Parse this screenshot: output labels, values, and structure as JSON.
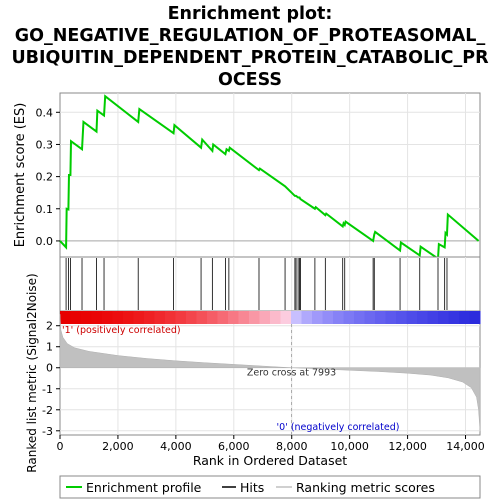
{
  "chart_data": {
    "type": "line",
    "title_lines": [
      "Enrichment plot:",
      "GO_NEGATIVE_REGULATION_OF_PROTEASOMAL_",
      "UBIQUITIN_DEPENDENT_PROTEIN_CATABOLIC_PR",
      "OCESS"
    ],
    "es_ylabel": "Enrichment score (ES)",
    "metric_ylabel": "Ranked list metric (Signal2Noise)",
    "xlabel": "Rank in Ordered Dataset",
    "xlim": [
      0,
      14500
    ],
    "es_ylim": [
      -0.05,
      0.46
    ],
    "metric_ylim": [
      -3.2,
      2.7
    ],
    "x_ticks": [
      0,
      2000,
      4000,
      6000,
      8000,
      10000,
      12000,
      14000
    ],
    "x_tick_labels": [
      "0",
      "2,000",
      "4,000",
      "6,000",
      "8,000",
      "10,000",
      "12,000",
      "14,000"
    ],
    "es_ticks": [
      0.0,
      0.1,
      0.2,
      0.3,
      0.4
    ],
    "es_tick_labels": [
      "0.0",
      "0.1",
      "0.2",
      "0.3",
      "0.4"
    ],
    "metric_ticks": [
      -3,
      -2,
      -1,
      0,
      1,
      2
    ],
    "metric_tick_labels": [
      "-3",
      "-2",
      "-1",
      "0",
      "1",
      "2"
    ],
    "grid": true,
    "enrichment_profile": {
      "name": "Enrichment profile",
      "color": "#00cc00",
      "points": [
        [
          0,
          0
        ],
        [
          210,
          -0.02
        ],
        [
          230,
          0.1
        ],
        [
          290,
          0.098
        ],
        [
          310,
          0.205
        ],
        [
          360,
          0.205
        ],
        [
          380,
          0.31
        ],
        [
          760,
          0.285
        ],
        [
          810,
          0.37
        ],
        [
          1260,
          0.34
        ],
        [
          1290,
          0.405
        ],
        [
          1520,
          0.39
        ],
        [
          1560,
          0.45
        ],
        [
          2700,
          0.37
        ],
        [
          2740,
          0.41
        ],
        [
          3920,
          0.335
        ],
        [
          3950,
          0.36
        ],
        [
          4870,
          0.29
        ],
        [
          4910,
          0.315
        ],
        [
          5260,
          0.28
        ],
        [
          5290,
          0.3
        ],
        [
          5710,
          0.27
        ],
        [
          5750,
          0.285
        ],
        [
          5830,
          0.28
        ],
        [
          5860,
          0.29
        ],
        [
          6870,
          0.22
        ],
        [
          6900,
          0.225
        ],
        [
          7770,
          0.17
        ],
        [
          8110,
          0.14
        ],
        [
          8150,
          0.14
        ],
        [
          8220,
          0.135
        ],
        [
          8270,
          0.135
        ],
        [
          8300,
          0.13
        ],
        [
          8800,
          0.1
        ],
        [
          8830,
          0.105
        ],
        [
          9160,
          0.08
        ],
        [
          9190,
          0.085
        ],
        [
          9760,
          0.045
        ],
        [
          9790,
          0.055
        ],
        [
          9830,
          0.05
        ],
        [
          9860,
          0.06
        ],
        [
          10810,
          0.0
        ],
        [
          10850,
          0.02
        ],
        [
          10880,
          0.028
        ],
        [
          11740,
          -0.03
        ],
        [
          11770,
          -0.005
        ],
        [
          12420,
          -0.045
        ],
        [
          12450,
          -0.018
        ],
        [
          13050,
          -0.055
        ],
        [
          13080,
          -0.01
        ],
        [
          13280,
          -0.02
        ],
        [
          13310,
          0.025
        ],
        [
          13360,
          0.02
        ],
        [
          13390,
          0.082
        ],
        [
          14450,
          0.0
        ]
      ]
    },
    "hits": [
      210,
      290,
      360,
      760,
      1260,
      1520,
      2700,
      3920,
      4870,
      5260,
      5710,
      5830,
      6870,
      7770,
      8110,
      8150,
      8220,
      8270,
      8300,
      8800,
      9160,
      9760,
      9830,
      10810,
      10850,
      11740,
      12420,
      13050,
      13280,
      13360
    ],
    "metric_profile": [
      [
        0,
        2.55
      ],
      [
        30,
        1.8
      ],
      [
        100,
        1.45
      ],
      [
        250,
        1.15
      ],
      [
        500,
        0.95
      ],
      [
        1000,
        0.78
      ],
      [
        2000,
        0.58
      ],
      [
        3000,
        0.44
      ],
      [
        4000,
        0.33
      ],
      [
        5000,
        0.24
      ],
      [
        6000,
        0.16
      ],
      [
        7000,
        0.08
      ],
      [
        7993,
        0.0
      ],
      [
        9000,
        -0.06
      ],
      [
        10000,
        -0.12
      ],
      [
        11000,
        -0.18
      ],
      [
        12000,
        -0.26
      ],
      [
        12800,
        -0.35
      ],
      [
        13400,
        -0.48
      ],
      [
        13900,
        -0.68
      ],
      [
        14200,
        -0.95
      ],
      [
        14380,
        -1.4
      ],
      [
        14450,
        -2.0
      ],
      [
        14500,
        -3.0
      ]
    ],
    "zero_cross": 7993,
    "zero_cross_label": "Zero cross at 7993",
    "pos_label": "'1' (positively correlated)",
    "neg_label": "'0' (negatively correlated)",
    "pos_color": "#cc0000",
    "neg_color": "#0000cc",
    "legend": {
      "placement": "bottom",
      "items": [
        {
          "label": "Enrichment profile",
          "color": "#00cc00"
        },
        {
          "label": "Hits",
          "color": "#000000"
        },
        {
          "label": "Ranking metric scores",
          "color": "#c0c0c0"
        }
      ]
    }
  }
}
